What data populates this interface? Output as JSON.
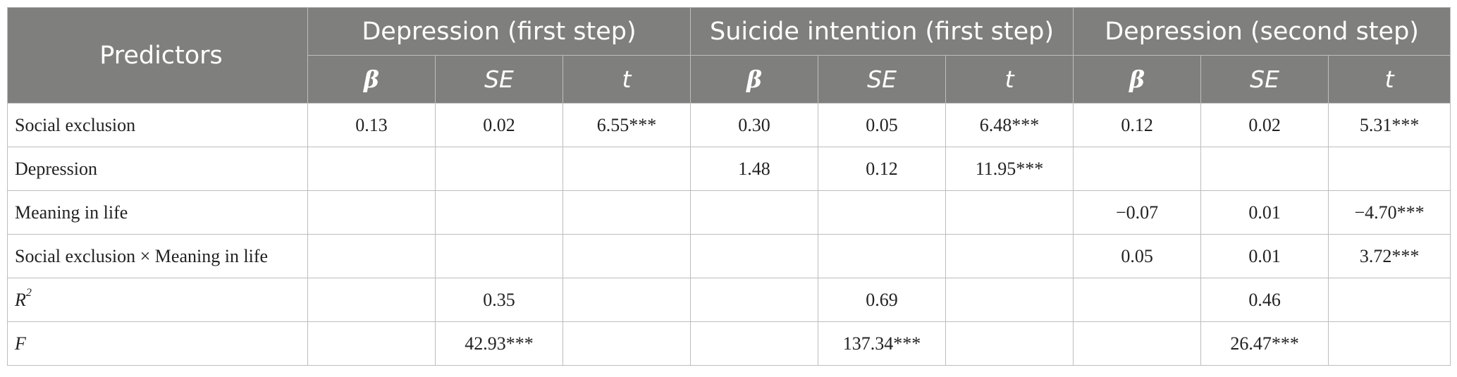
{
  "table": {
    "predictors_header": "Predictors",
    "groups": [
      "Depression (first step)",
      "Suicide intention (first step)",
      "Depression (second step)"
    ],
    "sub_headers": [
      "β",
      "SE",
      "t"
    ],
    "rows": [
      {
        "label": "Social exclusion",
        "cells": [
          "0.13",
          "0.02",
          "6.55***",
          "0.30",
          "0.05",
          "6.48***",
          "0.12",
          "0.02",
          "5.31***"
        ]
      },
      {
        "label": "Depression",
        "cells": [
          "",
          "",
          "",
          "1.48",
          "0.12",
          "11.95***",
          "",
          "",
          ""
        ]
      },
      {
        "label": "Meaning in life",
        "cells": [
          "",
          "",
          "",
          "",
          "",
          "",
          "−0.07",
          "0.01",
          "−4.70***"
        ]
      },
      {
        "label": "Social exclusion × Meaning in life",
        "cells": [
          "",
          "",
          "",
          "",
          "",
          "",
          "0.05",
          "0.01",
          "3.72***"
        ]
      }
    ],
    "r2_row": {
      "label": "R",
      "label_sup": "2",
      "values": [
        "0.35",
        "0.69",
        "0.46"
      ]
    },
    "f_row": {
      "label": "F",
      "values": [
        "42.93***",
        "137.34***",
        "26.47***"
      ]
    }
  }
}
